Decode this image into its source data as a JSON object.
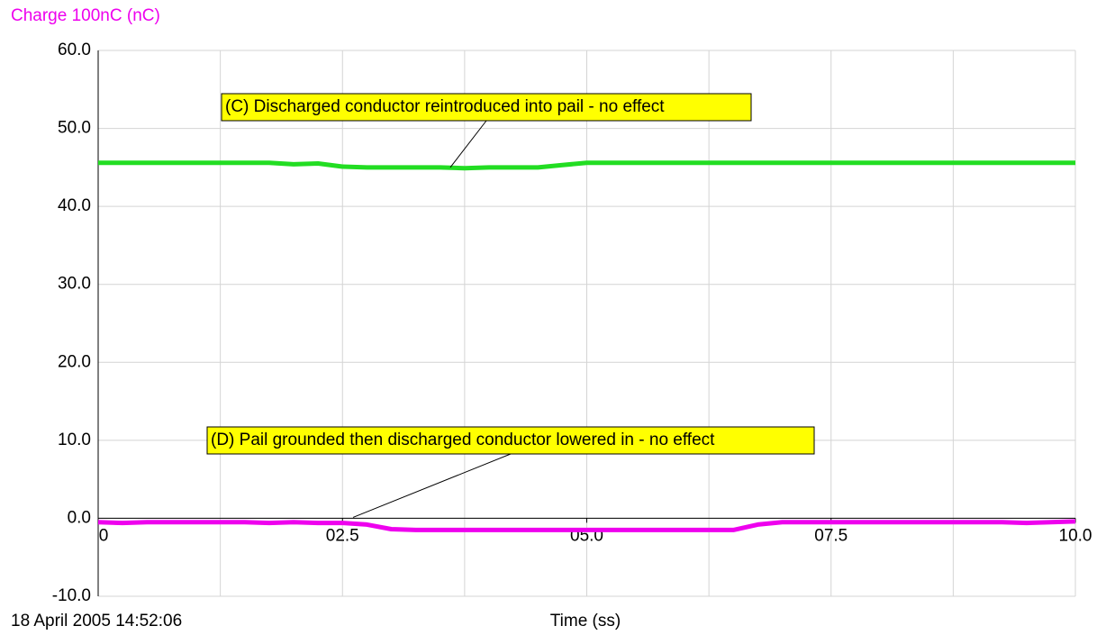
{
  "chart_data": {
    "type": "line",
    "y_label": "Charge 100nC (nC)",
    "x_label": "Time (ss)",
    "timestamp": "18 April 2005  14:52:06",
    "x": [
      0,
      0.25,
      0.5,
      0.75,
      1,
      1.25,
      1.5,
      1.75,
      2,
      2.25,
      2.5,
      2.75,
      3,
      3.25,
      3.5,
      3.75,
      4,
      4.25,
      4.5,
      4.75,
      5,
      5.25,
      5.5,
      5.75,
      6,
      6.25,
      6.5,
      6.75,
      7,
      7.25,
      7.5,
      7.75,
      8,
      8.25,
      8.5,
      8.75,
      9,
      9.25,
      9.5,
      9.75,
      10
    ],
    "series": [
      {
        "name": "Charge 100nC (nC)",
        "color": "#22dd22",
        "values": [
          45.6,
          45.6,
          45.6,
          45.6,
          45.6,
          45.6,
          45.6,
          45.6,
          45.4,
          45.5,
          45.1,
          45.0,
          45.0,
          45.0,
          45.0,
          44.9,
          45.0,
          45.0,
          45.0,
          45.3,
          45.6,
          45.6,
          45.6,
          45.6,
          45.6,
          45.6,
          45.6,
          45.6,
          45.6,
          45.6,
          45.6,
          45.6,
          45.6,
          45.6,
          45.6,
          45.6,
          45.6,
          45.6,
          45.6,
          45.6,
          45.6
        ]
      },
      {
        "name": "Charge 100nC (nC) D",
        "color": "#ee00ee",
        "values": [
          -0.5,
          -0.6,
          -0.5,
          -0.5,
          -0.5,
          -0.5,
          -0.5,
          -0.6,
          -0.5,
          -0.6,
          -0.6,
          -0.8,
          -1.4,
          -1.5,
          -1.5,
          -1.5,
          -1.5,
          -1.5,
          -1.5,
          -1.5,
          -1.5,
          -1.5,
          -1.5,
          -1.5,
          -1.5,
          -1.5,
          -1.5,
          -0.8,
          -0.5,
          -0.5,
          -0.5,
          -0.5,
          -0.5,
          -0.5,
          -0.5,
          -0.5,
          -0.5,
          -0.5,
          -0.6,
          -0.5,
          -0.4
        ]
      }
    ],
    "xlim": [
      0,
      10
    ],
    "ylim": [
      -10,
      60
    ],
    "xticks": [
      0,
      {
        "value": 2.5,
        "label": "02.5"
      },
      {
        "value": 5,
        "label": "05.0"
      },
      {
        "value": 7.5,
        "label": "07.5"
      },
      {
        "value": 10,
        "label": "10.0"
      }
    ],
    "x_gridlines": [
      1.25,
      2.5,
      3.75,
      5,
      6.25,
      7.5,
      8.75,
      10
    ],
    "yticks": [
      {
        "value": -10,
        "label": "-10.0"
      },
      {
        "value": 0,
        "label": "0.0"
      },
      {
        "value": 10,
        "label": "10.0"
      },
      {
        "value": 20,
        "label": "20.0"
      },
      {
        "value": 30,
        "label": "30.0"
      },
      {
        "value": 40,
        "label": "40.0"
      },
      {
        "value": 50,
        "label": "50.0"
      },
      {
        "value": 60,
        "label": "60.0"
      }
    ],
    "grid": true,
    "annotations": [
      {
        "text": "(C) Discharged conductor reintroduced into pail - no effect"
      },
      {
        "text": "(D) Pail grounded then discharged conductor lowered in - no effect"
      }
    ]
  }
}
